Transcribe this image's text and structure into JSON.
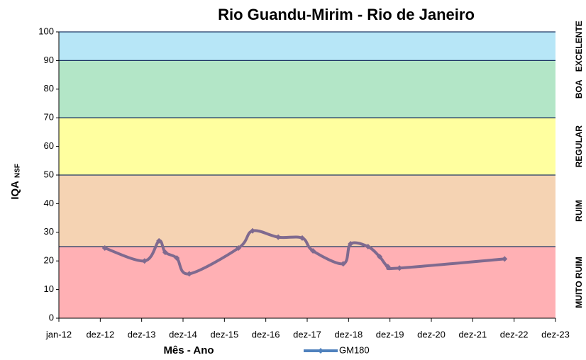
{
  "chart_data": {
    "type": "line",
    "title": "Rio Guandu-Mirim - Rio de Janeiro",
    "x_label": "Mês - Ano",
    "y_label": "IQA",
    "y_label_subscript": "NSF",
    "xlim": [
      2012,
      2024
    ],
    "xticks": [
      {
        "value": 2012,
        "label": "jan-12"
      },
      {
        "value": 2013,
        "label": "dez-12"
      },
      {
        "value": 2014,
        "label": "dez-13"
      },
      {
        "value": 2015,
        "label": "dez-14"
      },
      {
        "value": 2016,
        "label": "dez-15"
      },
      {
        "value": 2017,
        "label": "dez-16"
      },
      {
        "value": 2018,
        "label": "dez-17"
      },
      {
        "value": 2019,
        "label": "dez-18"
      },
      {
        "value": 2020,
        "label": "dez-19"
      },
      {
        "value": 2021,
        "label": "dez-20"
      },
      {
        "value": 2022,
        "label": "dez-21"
      },
      {
        "value": 2023,
        "label": "dez-22"
      },
      {
        "value": 2024,
        "label": "dez-23"
      }
    ],
    "ylim": [
      0,
      100
    ],
    "yticks": [
      0,
      10,
      20,
      30,
      40,
      50,
      60,
      70,
      80,
      90,
      100
    ],
    "bands": [
      {
        "from": 0,
        "to": 25,
        "label": "MUITO RUIM",
        "color": "#ffb0b4"
      },
      {
        "from": 25,
        "to": 50,
        "label": "RUIM",
        "color": "#f5d3b3"
      },
      {
        "from": 50,
        "to": 70,
        "label": "REGULAR",
        "color": "#ffff9f"
      },
      {
        "from": 70,
        "to": 90,
        "label": "BOA",
        "color": "#b3e6c7"
      },
      {
        "from": 90,
        "to": 100,
        "label": "EXCELENTE",
        "color": "#b7e6f7"
      }
    ],
    "series": [
      {
        "name": "GM180",
        "color": "#7f6a8f",
        "legend_color": "#4f81bd",
        "x": [
          2013.11,
          2014.07,
          2014.42,
          2014.57,
          2014.85,
          2015.15,
          2016.34,
          2016.68,
          2017.3,
          2017.88,
          2018.14,
          2018.87,
          2019.05,
          2019.47,
          2019.75,
          2019.95,
          2020.23,
          2022.77
        ],
        "values": [
          24.5,
          20,
          27,
          23,
          21,
          15.5,
          24.5,
          30.5,
          28.3,
          28,
          23.5,
          19,
          26,
          25,
          21.5,
          18,
          17.5,
          20.7
        ]
      }
    ]
  }
}
